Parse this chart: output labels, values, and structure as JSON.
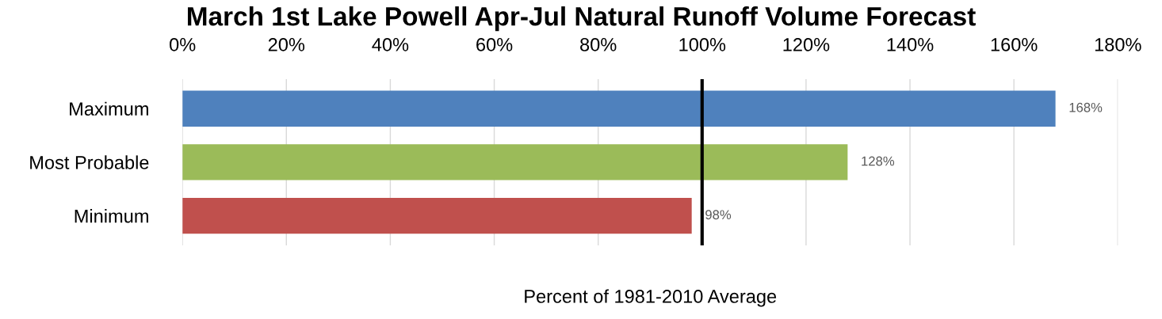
{
  "chart_data": {
    "type": "bar",
    "orientation": "horizontal",
    "title": "March 1st Lake Powell Apr-Jul Natural Runoff Volume Forecast",
    "xlabel": "Percent of 1981-2010 Average",
    "categories": [
      "Maximum",
      "Most Probable",
      "Minimum"
    ],
    "values": [
      168,
      128,
      98
    ],
    "colors": [
      "#4f81bd",
      "#9bbb59",
      "#c0504d"
    ],
    "value_labels": [
      "168%",
      "128%",
      "98%"
    ],
    "xlim": [
      0,
      180
    ],
    "xticks": [
      {
        "value": 0,
        "label": "0%"
      },
      {
        "value": 20,
        "label": "20%"
      },
      {
        "value": 40,
        "label": "40%"
      },
      {
        "value": 60,
        "label": "60%"
      },
      {
        "value": 80,
        "label": "80%"
      },
      {
        "value": 100,
        "label": "100%"
      },
      {
        "value": 120,
        "label": "120%"
      },
      {
        "value": 140,
        "label": "140%"
      },
      {
        "value": 160,
        "label": "160%"
      },
      {
        "value": 180,
        "label": "180%"
      }
    ],
    "ref_lines": [
      {
        "axis": "x",
        "value": 100,
        "color": "#000000",
        "line_style": "solid"
      }
    ],
    "grid": "x",
    "legend": false
  }
}
